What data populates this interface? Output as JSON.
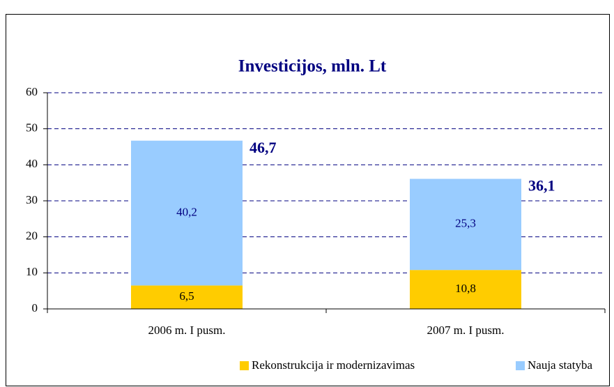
{
  "chart_data": {
    "type": "stacked_bar",
    "title": "Investicijos, mln. Lt",
    "categories": [
      "2006 m. I pusm.",
      "2007 m. I pusm."
    ],
    "series": [
      {
        "name": "Rekonstrukcija ir modernizavimas",
        "color": "#ffcc00",
        "values": [
          6.5,
          10.8
        ],
        "value_labels": [
          "6,5",
          "10,8"
        ]
      },
      {
        "name": "Nauja statyba",
        "color": "#99ccff",
        "values": [
          40.2,
          25.3
        ],
        "value_labels": [
          "40,2",
          "25,3"
        ]
      }
    ],
    "totals": {
      "values": [
        46.7,
        36.1
      ],
      "value_labels": [
        "46,7",
        "36,1"
      ]
    },
    "ylim": [
      0,
      60
    ],
    "yticks": [
      0,
      10,
      20,
      30,
      40,
      50,
      60
    ],
    "grid": true,
    "legend": "bottom"
  }
}
